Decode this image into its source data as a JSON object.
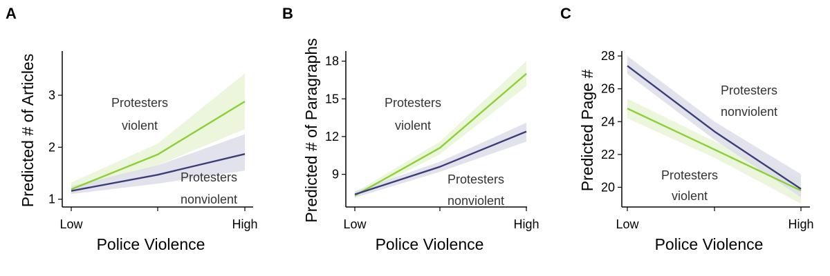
{
  "chart_data": [
    {
      "panel_label": "A",
      "type": "line",
      "xlabel": "Police Violence",
      "ylabel": "Predicted # of Articles",
      "x_categories": [
        "Low",
        "",
        "High"
      ],
      "xticklabels": [
        "Low",
        "High"
      ],
      "yticks": [
        1,
        2,
        3
      ],
      "ylim": [
        0.85,
        3.85
      ],
      "series": [
        {
          "annotation": [
            "Protesters",
            "violent"
          ],
          "color": "#8bd136",
          "band_color": "#e7f5d6",
          "values": [
            1.19,
            1.86,
            2.88
          ],
          "lower": [
            1.1,
            1.65,
            2.35
          ],
          "upper": [
            1.32,
            2.07,
            3.42
          ]
        },
        {
          "annotation": [
            "Protesters",
            "nonviolent"
          ],
          "color": "#3a3d77",
          "band_color": "#dcdde8",
          "values": [
            1.16,
            1.47,
            1.87
          ],
          "lower": [
            1.1,
            1.3,
            1.55
          ],
          "upper": [
            1.25,
            1.65,
            2.25
          ]
        }
      ]
    },
    {
      "panel_label": "B",
      "type": "line",
      "xlabel": "Police Violence",
      "ylabel": "Predicted # of Paragraphs",
      "x_categories": [
        "Low",
        "",
        "High"
      ],
      "xticklabels": [
        "Low",
        "High"
      ],
      "yticks": [
        9,
        12,
        15,
        18
      ],
      "ylim": [
        6.4,
        18.8
      ],
      "series": [
        {
          "annotation": [
            "Protesters",
            "violent"
          ],
          "color": "#8bd136",
          "band_color": "#e7f5d6",
          "values": [
            7.3,
            11.1,
            17.0
          ],
          "lower": [
            7.1,
            10.6,
            16.0
          ],
          "upper": [
            7.55,
            11.6,
            18.0
          ]
        },
        {
          "annotation": [
            "Protesters",
            "nonviolent"
          ],
          "color": "#3a3d77",
          "band_color": "#dcdde8",
          "values": [
            7.4,
            9.6,
            12.4
          ],
          "lower": [
            7.15,
            9.2,
            11.6
          ],
          "upper": [
            7.65,
            10.0,
            13.1
          ]
        }
      ]
    },
    {
      "panel_label": "C",
      "type": "line",
      "xlabel": "Police Violence",
      "ylabel": "Predicted Page #",
      "x_categories": [
        "Low",
        "",
        "High"
      ],
      "xticklabels": [
        "Low",
        "High"
      ],
      "yticks": [
        20,
        22,
        24,
        26,
        28
      ],
      "ylim": [
        18.8,
        28.3
      ],
      "series": [
        {
          "annotation": [
            "Protesters",
            "violent"
          ],
          "color": "#8bd136",
          "band_color": "#e7f5d6",
          "values": [
            24.8,
            22.3,
            19.8
          ],
          "lower": [
            24.2,
            21.8,
            19.0
          ],
          "upper": [
            25.4,
            22.8,
            20.5
          ]
        },
        {
          "annotation": [
            "Protesters",
            "nonviolent"
          ],
          "color": "#3a3d77",
          "band_color": "#dcdde8",
          "values": [
            27.4,
            23.4,
            19.9
          ],
          "lower": [
            26.9,
            22.9,
            19.4
          ],
          "upper": [
            28.0,
            24.0,
            20.8
          ]
        }
      ]
    }
  ]
}
